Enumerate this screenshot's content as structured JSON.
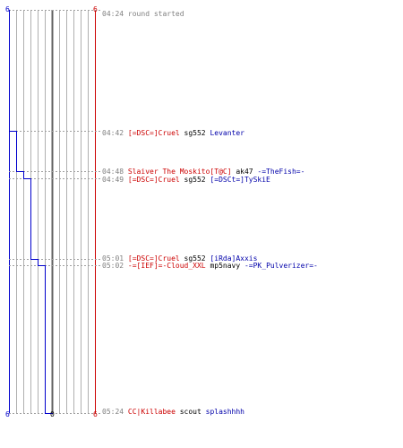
{
  "counts": {
    "blue_top": "6",
    "red_top": "6",
    "blue_bottom": "6",
    "zero_bottom": "0",
    "red_bottom": "6"
  },
  "colors": {
    "blue_team": "#0000cc",
    "red_team": "#cc0000",
    "grid": "#b0b0b0",
    "dash": "#a0a0a0",
    "center": "#606060"
  },
  "chart_data": {
    "type": "line",
    "start_count": 6,
    "steps": [
      {
        "time": "04:42",
        "value": 5
      },
      {
        "time": "04:48",
        "value": 4
      },
      {
        "time": "04:49",
        "value": 3
      },
      {
        "time": "05:01",
        "value": 2
      },
      {
        "time": "05:02",
        "value": 1
      },
      {
        "time": "05:24",
        "value": 0
      }
    ]
  },
  "events": [
    {
      "time": "04:24",
      "parts": [
        {
          "text": "round started",
          "color": "msg"
        }
      ]
    },
    {
      "time": "04:42",
      "parts": [
        {
          "text": "[=DSC=]Cruel",
          "color": "red"
        },
        {
          "text": " sg552 ",
          "color": "blk"
        },
        {
          "text": "Levanter",
          "color": "blue"
        }
      ]
    },
    {
      "time": "04:48",
      "parts": [
        {
          "text": "Slaiver The Moskito[T@C]",
          "color": "red"
        },
        {
          "text": " ak47 ",
          "color": "blk"
        },
        {
          "text": "-=TheFish=-",
          "color": "blue"
        }
      ]
    },
    {
      "time": "04:49",
      "parts": [
        {
          "text": "[=DSC=]Cruel",
          "color": "red"
        },
        {
          "text": " sg552 ",
          "color": "blk"
        },
        {
          "text": "[=DSCt=]TySkiE",
          "color": "blue"
        }
      ]
    },
    {
      "time": "05:01",
      "parts": [
        {
          "text": "[=DSC=]Cruel",
          "color": "red"
        },
        {
          "text": " sg552 ",
          "color": "blk"
        },
        {
          "text": "[iRda]Axxis",
          "color": "blue"
        }
      ]
    },
    {
      "time": "05:02",
      "parts": [
        {
          "text": "-=[IEF]=-Cloud_XXL",
          "color": "red"
        },
        {
          "text": " mp5navy ",
          "color": "blk"
        },
        {
          "text": "-=PK_Pulverizer=-",
          "color": "blue"
        }
      ]
    },
    {
      "time": "05:24",
      "parts": [
        {
          "text": "CC|Killabee",
          "color": "red"
        },
        {
          "text": " scout ",
          "color": "blk"
        },
        {
          "text": "splashhhh",
          "color": "blue"
        }
      ]
    }
  ]
}
